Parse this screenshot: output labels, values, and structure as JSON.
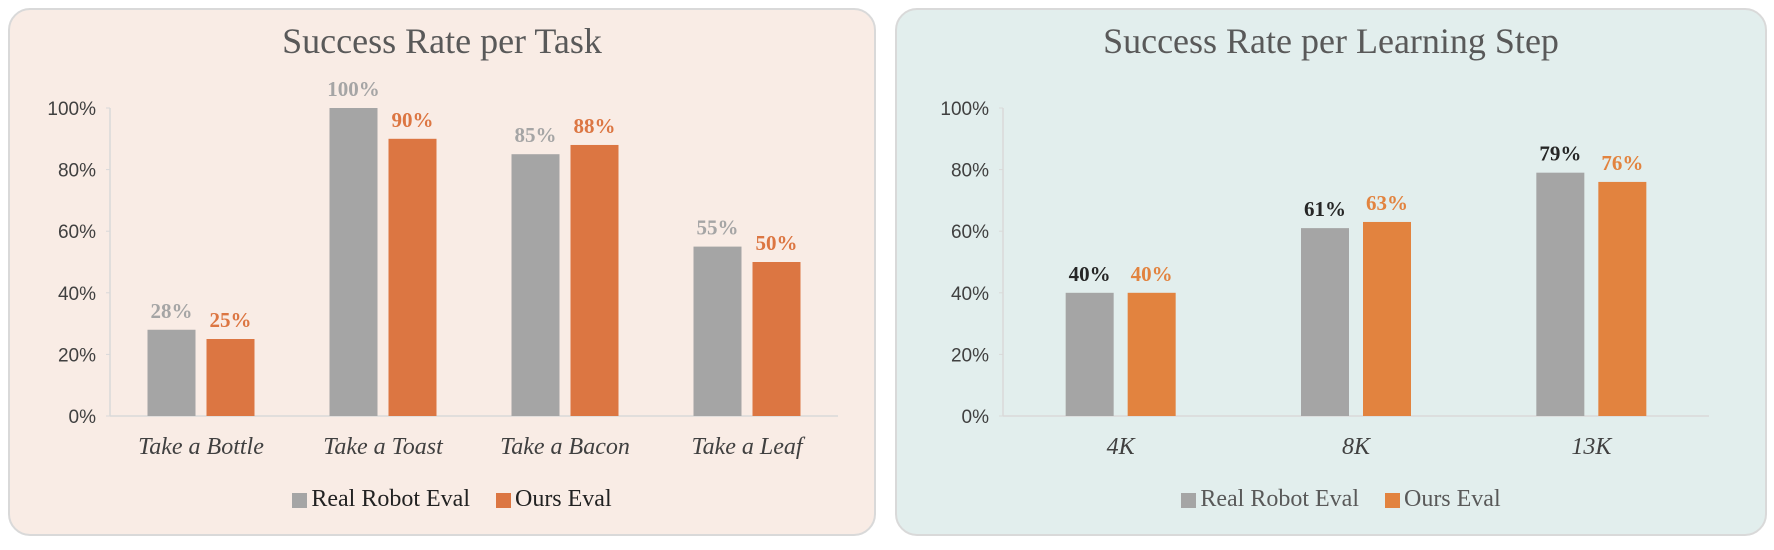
{
  "chart_data": [
    {
      "type": "bar",
      "title": "Success Rate per Task",
      "categories": [
        "Take a Bottle",
        "Take a Toast",
        "Take a Bacon",
        "Take a Leaf"
      ],
      "series": [
        {
          "name": "Real Robot Eval",
          "values": [
            28,
            100,
            85,
            55
          ],
          "labels": [
            "28%",
            "100%",
            "85%",
            "55%"
          ],
          "color": "#a5a5a5",
          "label_color": "#a5a5a5"
        },
        {
          "name": "Ours Eval",
          "values": [
            25,
            90,
            88,
            50
          ],
          "labels": [
            "25%",
            "90%",
            "88%",
            "50%"
          ],
          "color": "#dc7642",
          "label_color": "#dc7642"
        }
      ],
      "yticks": [
        "0%",
        "20%",
        "40%",
        "60%",
        "80%",
        "100%"
      ],
      "ylim": [
        0,
        100
      ],
      "xlabel": "",
      "ylabel": "",
      "legend": "bottom",
      "grid": false,
      "background": "#f9ece5"
    },
    {
      "type": "bar",
      "title": "Success Rate per Learning Step",
      "categories": [
        "4K",
        "8K",
        "13K"
      ],
      "series": [
        {
          "name": "Real Robot Eval",
          "values": [
            40,
            61,
            79
          ],
          "labels": [
            "40%",
            "61%",
            "79%"
          ],
          "color": "#a5a5a5",
          "label_color": "#262626"
        },
        {
          "name": "Ours Eval",
          "values": [
            40,
            63,
            76
          ],
          "labels": [
            "40%",
            "63%",
            "76%"
          ],
          "color": "#e2833f",
          "label_color": "#e2833f"
        }
      ],
      "yticks": [
        "0%",
        "20%",
        "40%",
        "60%",
        "80%",
        "100%"
      ],
      "ylim": [
        0,
        100
      ],
      "xlabel": "",
      "ylabel": "",
      "legend": "bottom",
      "grid": false,
      "background": "#e2eeed"
    }
  ]
}
